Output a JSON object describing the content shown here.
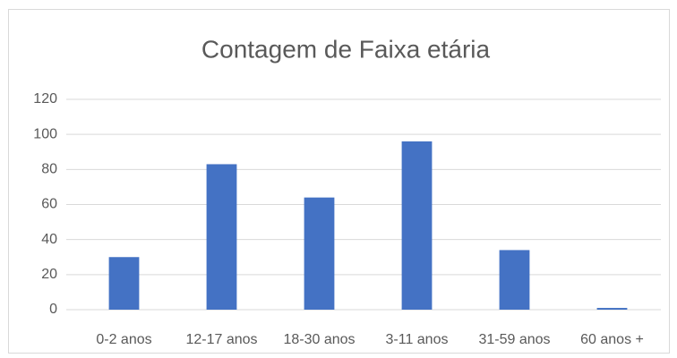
{
  "chart_data": {
    "type": "bar",
    "title": "Contagem de Faixa etária",
    "categories": [
      "0-2 anos",
      "12-17 anos",
      "18-30 anos",
      "3-11 anos",
      "31-59 anos",
      "60 anos +"
    ],
    "values": [
      30,
      83,
      64,
      96,
      34,
      1
    ],
    "color": "#4472c4",
    "ylim": [
      0,
      120
    ],
    "yticks": [
      0,
      20,
      40,
      60,
      80,
      100,
      120
    ],
    "grid": true
  }
}
